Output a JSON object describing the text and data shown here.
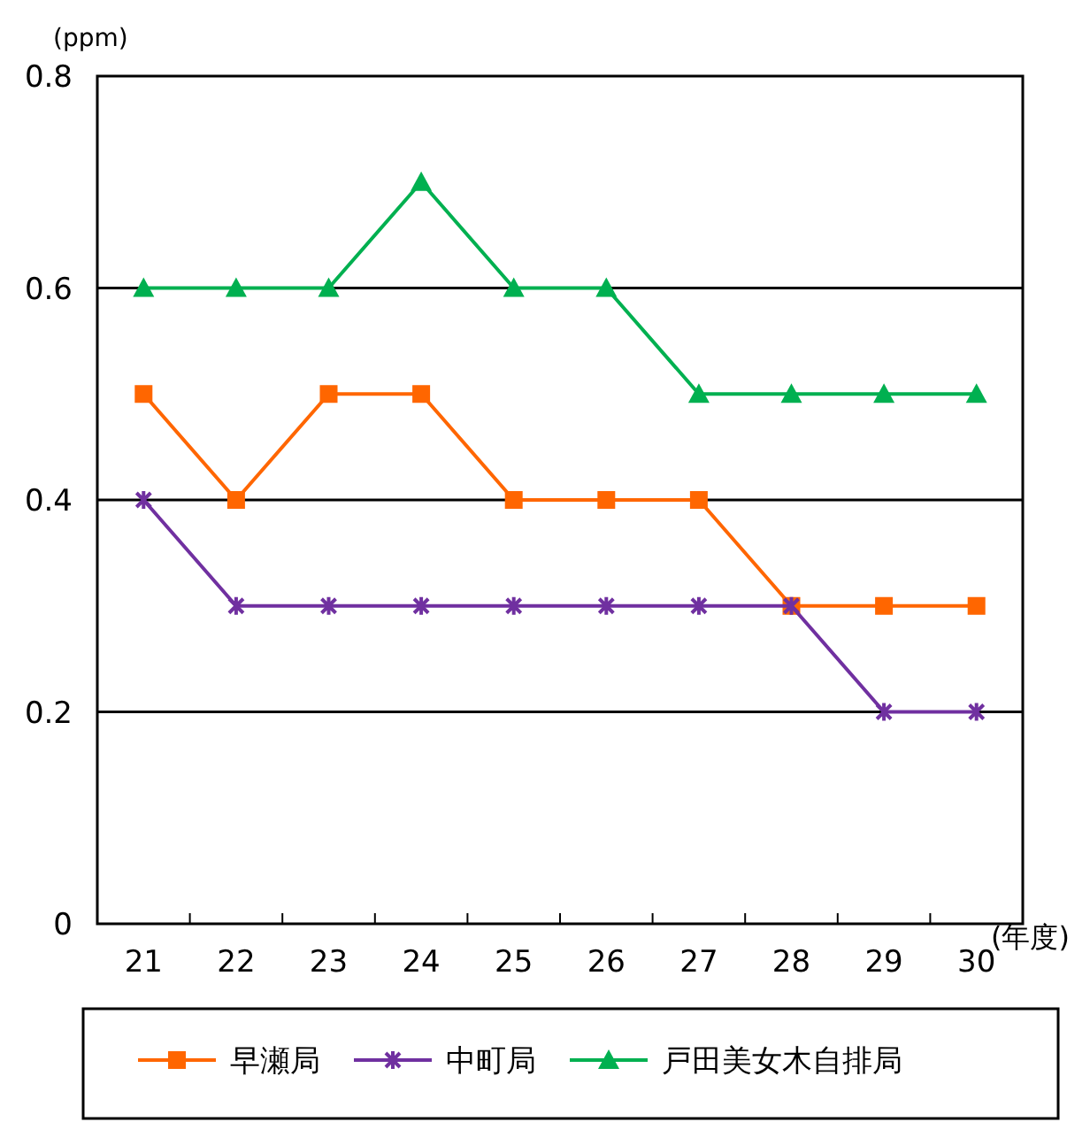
{
  "chart_data": {
    "type": "line",
    "ylabel": "(ppm)",
    "xlabel": "(年度)",
    "categories": [
      "21",
      "22",
      "23",
      "24",
      "25",
      "26",
      "27",
      "28",
      "29",
      "30"
    ],
    "ylim": [
      0,
      0.8
    ],
    "yticks": [
      0,
      0.2,
      0.4,
      0.6,
      0.8
    ],
    "grid": "y",
    "legend": "bottom",
    "series": [
      {
        "name": "早瀬局",
        "color": "#ff6600",
        "marker": "square",
        "values": [
          0.5,
          0.4,
          0.5,
          0.5,
          0.4,
          0.4,
          0.4,
          0.3,
          0.3,
          0.3
        ]
      },
      {
        "name": "中町局",
        "color": "#7030a0",
        "marker": "cross",
        "values": [
          0.4,
          0.3,
          0.3,
          0.3,
          0.3,
          0.3,
          0.3,
          0.3,
          0.2,
          0.2
        ]
      },
      {
        "name": "戸田美女木自排局",
        "color": "#00b050",
        "marker": "triangle",
        "values": [
          0.6,
          0.6,
          0.6,
          0.7,
          0.6,
          0.6,
          0.5,
          0.5,
          0.5,
          0.5
        ]
      }
    ]
  }
}
